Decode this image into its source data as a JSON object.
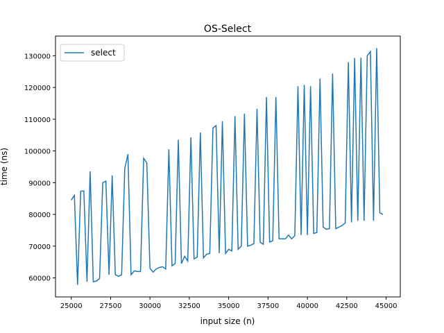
{
  "chart_data": {
    "type": "line",
    "title": "OS-Select",
    "x_label": "input size (n)",
    "y_label": "time (ns)",
    "x": [
      25000,
      25200,
      25400,
      25600,
      25800,
      26000,
      26200,
      26400,
      26600,
      26800,
      27000,
      27200,
      27400,
      27600,
      27800,
      28000,
      28200,
      28400,
      28600,
      28800,
      29000,
      29200,
      29400,
      29600,
      29800,
      30000,
      30200,
      30400,
      30600,
      30800,
      31000,
      31200,
      31400,
      31600,
      31800,
      32000,
      32200,
      32400,
      32600,
      32800,
      33000,
      33200,
      33400,
      33600,
      33800,
      34000,
      34200,
      34400,
      34600,
      34800,
      35000,
      35200,
      35400,
      35600,
      35800,
      36000,
      36200,
      36400,
      36600,
      36800,
      37000,
      37200,
      37400,
      37600,
      37800,
      38000,
      38200,
      38400,
      38600,
      38800,
      39000,
      39200,
      39400,
      39600,
      39800,
      40000,
      40200,
      40400,
      40600,
      40800,
      41000,
      41200,
      41400,
      41600,
      41800,
      42000,
      42200,
      42400,
      42600,
      42800,
      43000,
      43200,
      43400,
      43600,
      43800,
      44000,
      44200,
      44400,
      44600,
      44800
    ],
    "series": [
      {
        "name": "select",
        "color": "#1f77b4",
        "values": [
          84500,
          86000,
          57800,
          87300,
          87400,
          58800,
          93600,
          58800,
          59000,
          59800,
          90000,
          90500,
          61000,
          92300,
          61000,
          60500,
          61000,
          94500,
          99000,
          61000,
          62200,
          62000,
          62000,
          97700,
          96200,
          63000,
          61800,
          62800,
          63300,
          63500,
          62800,
          100500,
          63800,
          64500,
          103500,
          64500,
          66800,
          65300,
          104300,
          66000,
          66500,
          105800,
          66300,
          67500,
          67700,
          107200,
          108000,
          67800,
          109400,
          67700,
          69000,
          68500,
          111000,
          69000,
          70000,
          111800,
          70000,
          70300,
          70800,
          113300,
          71200,
          70600,
          117000,
          71300,
          71700,
          117000,
          72300,
          72300,
          72300,
          73500,
          72300,
          73300,
          120400,
          73500,
          120800,
          73500,
          120400,
          74000,
          74300,
          122800,
          76000,
          75300,
          75500,
          124400,
          75500,
          76000,
          76500,
          77300,
          128000,
          77500,
          129300,
          78000,
          129400,
          78000,
          130000,
          131300,
          78000,
          132400,
          80500,
          80000
        ]
      }
    ],
    "xlim": [
      24000,
      45900
    ],
    "ylim": [
      54000,
      136200
    ],
    "xticks": [
      25000,
      27500,
      30000,
      32500,
      35000,
      37500,
      40000,
      42500,
      45000
    ],
    "yticks": [
      60000,
      70000,
      80000,
      90000,
      100000,
      110000,
      120000,
      130000
    ],
    "legend": "upper left"
  }
}
